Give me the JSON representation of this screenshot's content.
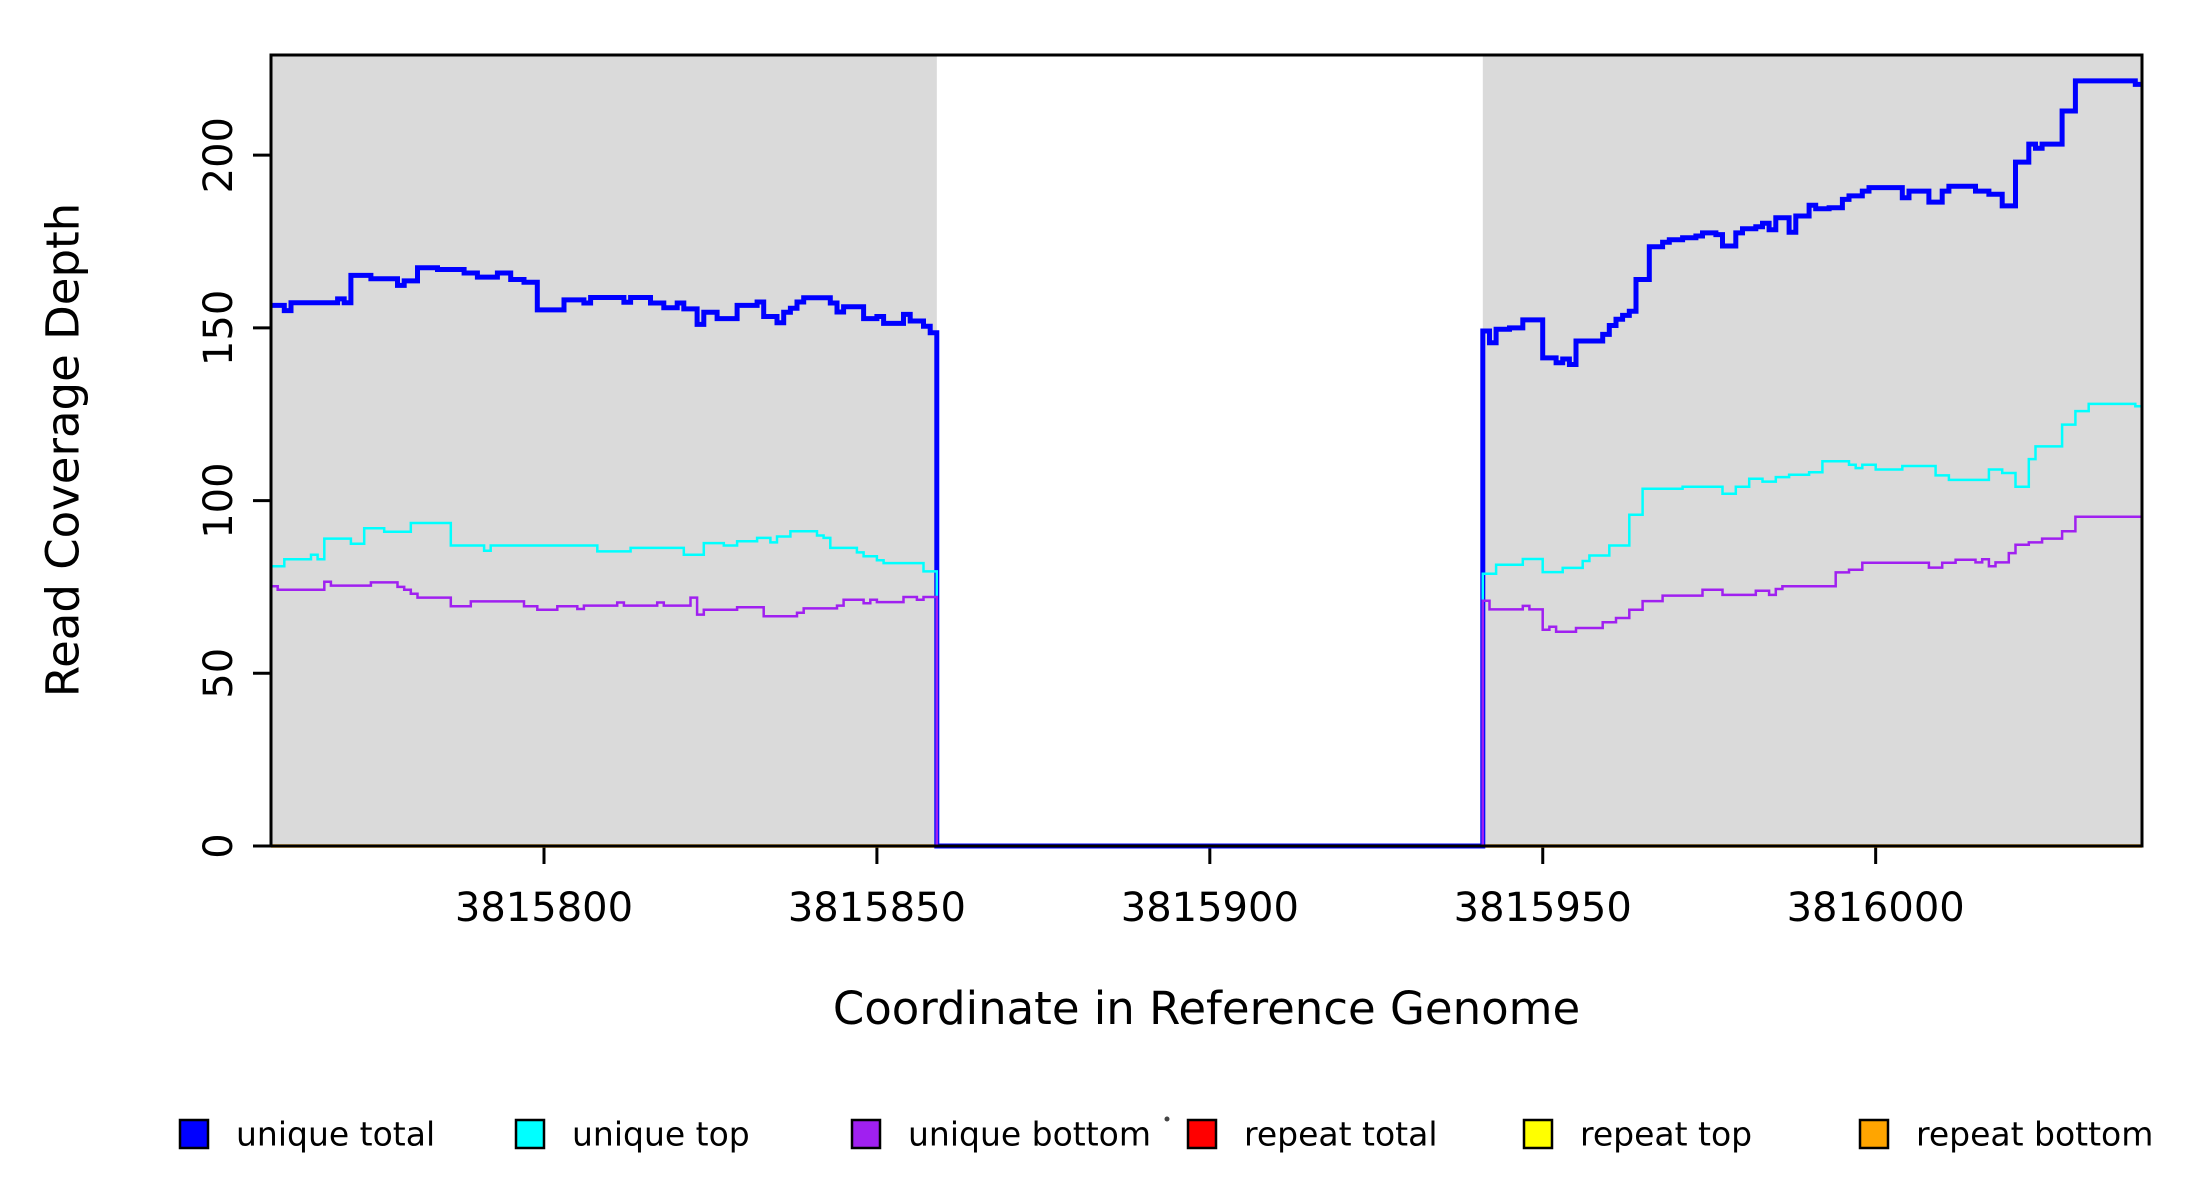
{
  "chart_data": {
    "type": "line",
    "step": true,
    "title": "",
    "xlabel": "Coordinate in Reference Genome",
    "ylabel": "Read Coverage Depth",
    "xlim": [
      3815759,
      3816040
    ],
    "ylim": [
      0,
      229
    ],
    "x_ticks": [
      3815800,
      3815850,
      3815900,
      3815950,
      3816000
    ],
    "y_ticks": [
      0,
      50,
      100,
      150,
      200
    ],
    "grid": false,
    "legend_position": "bottom",
    "plot_background": "#ffffff",
    "shaded_region_color": "#DADADA",
    "shaded_regions": [
      [
        3815759,
        3815859
      ],
      [
        3815941,
        3816040
      ]
    ],
    "gap_region": [
      3815859,
      3815941
    ],
    "series": [
      {
        "name": "repeat total",
        "color": "#FF0000",
        "width": 2.5,
        "points": [
          [
            3815759,
            0
          ],
          [
            3816040,
            0
          ]
        ]
      },
      {
        "name": "repeat top",
        "color": "#FFFF00",
        "width": 2.5,
        "points": [
          [
            3815759,
            0
          ],
          [
            3816040,
            0
          ]
        ]
      },
      {
        "name": "repeat bottom",
        "color": "#FFA500",
        "width": 3.5,
        "points": [
          [
            3815759,
            0
          ],
          [
            3816040,
            0
          ]
        ]
      },
      {
        "name": "unique total",
        "color": "#0000FF",
        "width": 5,
        "points": [
          [
            3815759,
            156.5
          ],
          [
            3815761,
            155
          ],
          [
            3815762,
            157.3
          ],
          [
            3815769,
            158.4
          ],
          [
            3815770,
            157.3
          ],
          [
            3815771,
            165.2
          ],
          [
            3815774,
            164.2
          ],
          [
            3815778,
            162.3
          ],
          [
            3815779,
            163.6
          ],
          [
            3815781,
            167.4
          ],
          [
            3815784,
            166.9
          ],
          [
            3815788,
            165.9
          ],
          [
            3815790,
            164.7
          ],
          [
            3815793,
            165.9
          ],
          [
            3815795,
            164
          ],
          [
            3815797,
            163.2
          ],
          [
            3815799,
            155.2
          ],
          [
            3815803,
            158.1
          ],
          [
            3815806,
            157.2
          ],
          [
            3815807,
            158.8
          ],
          [
            3815812,
            157.4
          ],
          [
            3815813,
            158.8
          ],
          [
            3815816,
            157.2
          ],
          [
            3815818,
            155.8
          ],
          [
            3815820,
            157.2
          ],
          [
            3815821,
            155.5
          ],
          [
            3815823,
            151
          ],
          [
            3815824,
            154.5
          ],
          [
            3815826,
            152.7
          ],
          [
            3815829,
            156.5
          ],
          [
            3815832,
            157.5
          ],
          [
            3815833,
            153.3
          ],
          [
            3815835,
            151.5
          ],
          [
            3815836,
            154.5
          ],
          [
            3815837,
            155.7
          ],
          [
            3815838,
            157.5
          ],
          [
            3815839,
            158.7
          ],
          [
            3815843,
            157.2
          ],
          [
            3815844,
            154.6
          ],
          [
            3815845,
            156.1
          ],
          [
            3815848,
            152.7
          ],
          [
            3815850,
            153.3
          ],
          [
            3815851,
            151.3
          ],
          [
            3815854,
            153.9
          ],
          [
            3815855,
            152
          ],
          [
            3815857,
            150.5
          ],
          [
            3815858,
            148.6
          ],
          [
            3815859,
            0
          ],
          [
            3815941,
            149.1
          ],
          [
            3815942,
            145.7
          ],
          [
            3815943,
            149.6
          ],
          [
            3815945,
            150
          ],
          [
            3815947,
            152.3
          ],
          [
            3815950,
            141.3
          ],
          [
            3815952,
            139.9
          ],
          [
            3815953,
            141
          ],
          [
            3815954,
            139.4
          ],
          [
            3815955,
            146.2
          ],
          [
            3815959,
            148.1
          ],
          [
            3815960,
            150.7
          ],
          [
            3815961,
            152.5
          ],
          [
            3815962,
            153.6
          ],
          [
            3815963,
            154.8
          ],
          [
            3815964,
            164
          ],
          [
            3815966,
            173.5
          ],
          [
            3815968,
            174.8
          ],
          [
            3815969,
            175.5
          ],
          [
            3815971,
            176.1
          ],
          [
            3815973,
            176.6
          ],
          [
            3815974,
            177.5
          ],
          [
            3815976,
            177
          ],
          [
            3815977,
            173.7
          ],
          [
            3815979,
            177.5
          ],
          [
            3815980,
            178.7
          ],
          [
            3815982,
            179.3
          ],
          [
            3815983,
            180.3
          ],
          [
            3815984,
            178.4
          ],
          [
            3815985,
            181.9
          ],
          [
            3815987,
            177.7
          ],
          [
            3815988,
            182.4
          ],
          [
            3815990,
            185.5
          ],
          [
            3815991,
            184.5
          ],
          [
            3815993,
            184.8
          ],
          [
            3815995,
            187.2
          ],
          [
            3815996,
            188.2
          ],
          [
            3815998,
            189.6
          ],
          [
            3815999,
            190.6
          ],
          [
            3816004,
            187.7
          ],
          [
            3816005,
            189.6
          ],
          [
            3816008,
            186.4
          ],
          [
            3816010,
            189.6
          ],
          [
            3816011,
            191
          ],
          [
            3816015,
            189.6
          ],
          [
            3816017,
            188.7
          ],
          [
            3816019,
            185.3
          ],
          [
            3816021,
            198
          ],
          [
            3816023,
            203.2
          ],
          [
            3816024,
            202
          ],
          [
            3816025,
            203.2
          ],
          [
            3816028,
            212.8
          ],
          [
            3816030,
            221.5
          ],
          [
            3816039,
            220.5
          ],
          [
            3816040,
            220.5
          ]
        ]
      },
      {
        "name": "unique top",
        "color": "#00FFFF",
        "width": 2.5,
        "points": [
          [
            3815759,
            81
          ],
          [
            3815761,
            83
          ],
          [
            3815765,
            84.3
          ],
          [
            3815766,
            83
          ],
          [
            3815767,
            89
          ],
          [
            3815771,
            87.5
          ],
          [
            3815773,
            92
          ],
          [
            3815776,
            91
          ],
          [
            3815780,
            93.5
          ],
          [
            3815786,
            87
          ],
          [
            3815791,
            85.5
          ],
          [
            3815792,
            87
          ],
          [
            3815808,
            85.3
          ],
          [
            3815813,
            86.3
          ],
          [
            3815821,
            84.3
          ],
          [
            3815824,
            87.7
          ],
          [
            3815827,
            87
          ],
          [
            3815829,
            88.2
          ],
          [
            3815832,
            89.2
          ],
          [
            3815834,
            87.9
          ],
          [
            3815835,
            89.6
          ],
          [
            3815837,
            91.1
          ],
          [
            3815841,
            89.9
          ],
          [
            3815842,
            89.2
          ],
          [
            3815843,
            86.3
          ],
          [
            3815847,
            85
          ],
          [
            3815848,
            83.9
          ],
          [
            3815850,
            82.7
          ],
          [
            3815851,
            81.9
          ],
          [
            3815857,
            79.5
          ],
          [
            3815859,
            0
          ],
          [
            3815941,
            78.8
          ],
          [
            3815943,
            81.4
          ],
          [
            3815947,
            83.1
          ],
          [
            3815950,
            79.3
          ],
          [
            3815953,
            80.5
          ],
          [
            3815956,
            82.5
          ],
          [
            3815957,
            84.1
          ],
          [
            3815960,
            87
          ],
          [
            3815963,
            95.9
          ],
          [
            3815965,
            103.4
          ],
          [
            3815971,
            104
          ],
          [
            3815977,
            102
          ],
          [
            3815979,
            104
          ],
          [
            3815981,
            106.3
          ],
          [
            3815983,
            105.5
          ],
          [
            3815985,
            106.8
          ],
          [
            3815987,
            107.5
          ],
          [
            3815990,
            108.2
          ],
          [
            3815992,
            111.4
          ],
          [
            3815996,
            110.4
          ],
          [
            3815997,
            109.4
          ],
          [
            3815998,
            110.4
          ],
          [
            3816000,
            109
          ],
          [
            3816004,
            110
          ],
          [
            3816009,
            107.3
          ],
          [
            3816011,
            106
          ],
          [
            3816017,
            109
          ],
          [
            3816019,
            108
          ],
          [
            3816021,
            104
          ],
          [
            3816023,
            112
          ],
          [
            3816024,
            115.7
          ],
          [
            3816028,
            122
          ],
          [
            3816030,
            125.9
          ],
          [
            3816032,
            128
          ],
          [
            3816039,
            127.3
          ],
          [
            3816040,
            127.3
          ]
        ]
      },
      {
        "name": "unique bottom",
        "color": "#A020F0",
        "width": 2.5,
        "points": [
          [
            3815759,
            75.2
          ],
          [
            3815760,
            74.2
          ],
          [
            3815767,
            76.5
          ],
          [
            3815768,
            75.4
          ],
          [
            3815774,
            76.3
          ],
          [
            3815778,
            75
          ],
          [
            3815779,
            74.2
          ],
          [
            3815780,
            73
          ],
          [
            3815781,
            71.9
          ],
          [
            3815786,
            69.4
          ],
          [
            3815789,
            70.8
          ],
          [
            3815797,
            69.4
          ],
          [
            3815799,
            68.4
          ],
          [
            3815802,
            69.4
          ],
          [
            3815805,
            68.6
          ],
          [
            3815806,
            69.6
          ],
          [
            3815811,
            70.5
          ],
          [
            3815812,
            69.6
          ],
          [
            3815817,
            70.5
          ],
          [
            3815818,
            69.6
          ],
          [
            3815822,
            71.9
          ],
          [
            3815823,
            67
          ],
          [
            3815824,
            68.4
          ],
          [
            3815829,
            69.1
          ],
          [
            3815833,
            66.5
          ],
          [
            3815838,
            67.5
          ],
          [
            3815839,
            68.8
          ],
          [
            3815844,
            69.6
          ],
          [
            3815845,
            71.3
          ],
          [
            3815848,
            70.3
          ],
          [
            3815849,
            71.3
          ],
          [
            3815850,
            70.6
          ],
          [
            3815854,
            72.1
          ],
          [
            3815856,
            71.3
          ],
          [
            3815857,
            72.1
          ],
          [
            3815859,
            0
          ],
          [
            3815941,
            71
          ],
          [
            3815942,
            68.5
          ],
          [
            3815947,
            69.5
          ],
          [
            3815948,
            68.5
          ],
          [
            3815950,
            62.6
          ],
          [
            3815951,
            63.5
          ],
          [
            3815952,
            62
          ],
          [
            3815955,
            63.1
          ],
          [
            3815959,
            64.8
          ],
          [
            3815961,
            66
          ],
          [
            3815963,
            68.4
          ],
          [
            3815965,
            70.9
          ],
          [
            3815968,
            72.5
          ],
          [
            3815974,
            74.2
          ],
          [
            3815977,
            72.7
          ],
          [
            3815982,
            73.9
          ],
          [
            3815984,
            72.7
          ],
          [
            3815985,
            74.4
          ],
          [
            3815986,
            75.2
          ],
          [
            3815994,
            79.2
          ],
          [
            3815996,
            80
          ],
          [
            3815998,
            82
          ],
          [
            3816008,
            80.6
          ],
          [
            3816010,
            82
          ],
          [
            3816012,
            82.9
          ],
          [
            3816015,
            82.1
          ],
          [
            3816016,
            83
          ],
          [
            3816017,
            81
          ],
          [
            3816018,
            82.1
          ],
          [
            3816020,
            84.8
          ],
          [
            3816021,
            87.2
          ],
          [
            3816023,
            87.9
          ],
          [
            3816025,
            89
          ],
          [
            3816028,
            91.1
          ],
          [
            3816030,
            95.3
          ],
          [
            3816040,
            95.3
          ]
        ]
      }
    ],
    "legend": {
      "entries": [
        "unique total",
        "unique top",
        "unique bottom",
        "repeat total",
        "repeat top",
        "repeat bottom"
      ]
    }
  }
}
